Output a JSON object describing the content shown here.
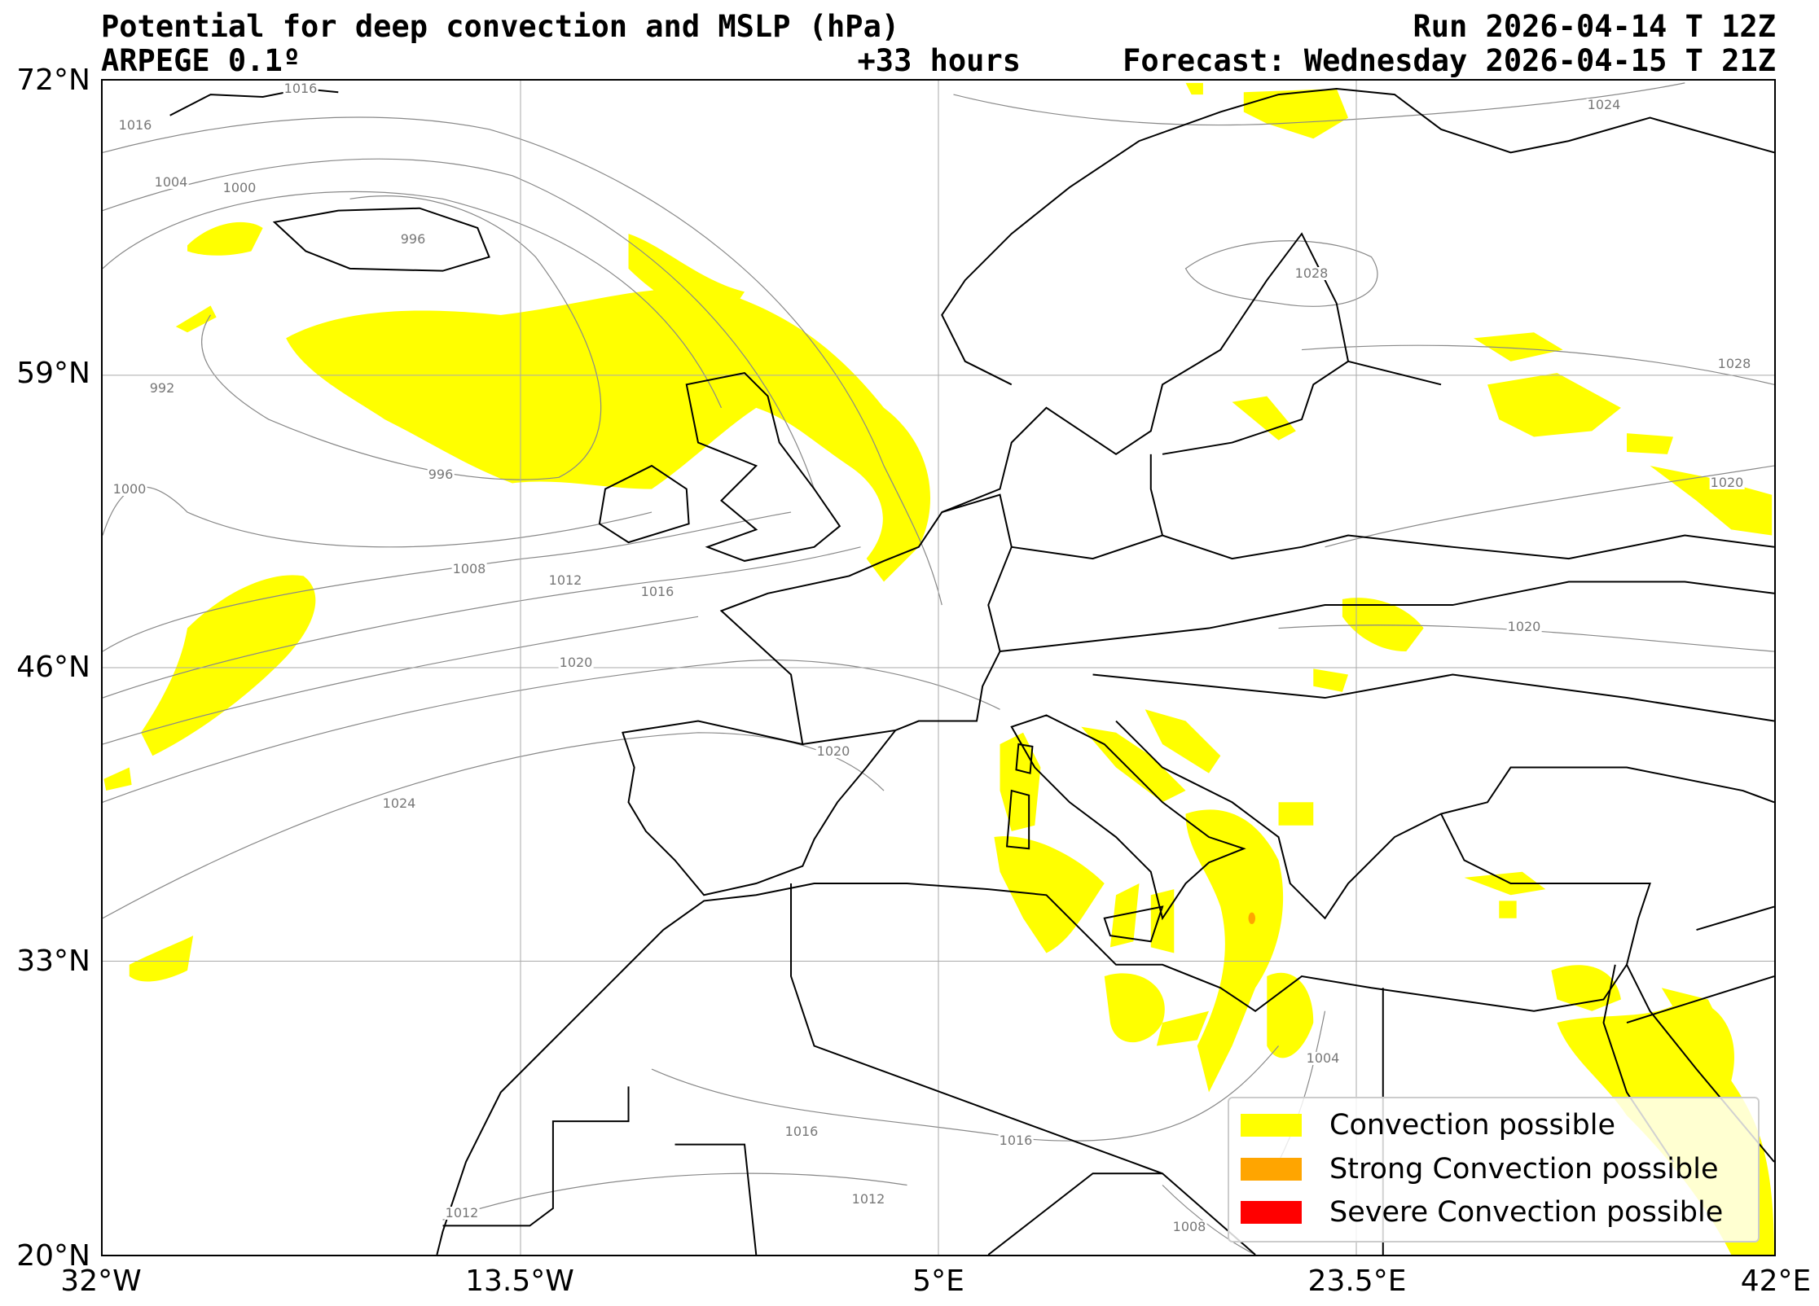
{
  "header": {
    "title": "Potential for deep convection and MSLP (hPa)",
    "model": "ARPEGE 0.1º",
    "run": "Run 2026-04-14 T 12Z",
    "lead_time": "+33 hours",
    "forecast": "Forecast: Wednesday 2026-04-15 T 21Z"
  },
  "axes": {
    "lat_ticks": [
      "72°N",
      "59°N",
      "46°N",
      "33°N",
      "20°N"
    ],
    "lon_ticks": [
      "32°W",
      "13.5°W",
      "5°E",
      "23.5°E",
      "42°E"
    ]
  },
  "isobar_labels": [
    "1016",
    "1016",
    "1004",
    "1000",
    "996",
    "992",
    "996",
    "1000",
    "1008",
    "1012",
    "1016",
    "1020",
    "1024",
    "1020",
    "1024",
    "1028",
    "1028",
    "1020",
    "1020",
    "1016",
    "1016",
    "1012",
    "1012",
    "1008",
    "1004"
  ],
  "legend": {
    "items": [
      {
        "label": "Convection possible",
        "color": "#ffff00"
      },
      {
        "label": "Strong Convection possible",
        "color": "#ffa500"
      },
      {
        "label": "Severe Convection possible",
        "color": "#ff0000"
      }
    ]
  }
}
